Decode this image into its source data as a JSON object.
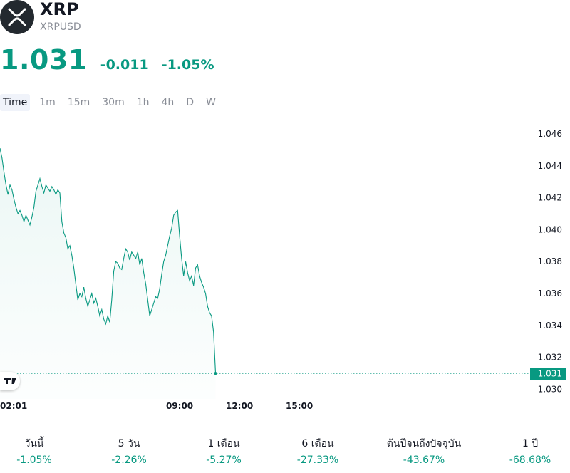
{
  "header": {
    "title": "XRP",
    "symbol": "XRPUSD",
    "price": "1.031",
    "change": "-0.011",
    "change_pct": "-1.05%"
  },
  "colors": {
    "up": "#089981",
    "logo_bg": "#23292f",
    "text": "#131722",
    "muted": "#8a8e97"
  },
  "icons": {
    "logo": "xrp-logo-icon",
    "watermark": "tradingview-logo-icon"
  },
  "tabs": [
    {
      "label": "Time",
      "active": true
    },
    {
      "label": "1m"
    },
    {
      "label": "15m"
    },
    {
      "label": "30m"
    },
    {
      "label": "1h"
    },
    {
      "label": "4h"
    },
    {
      "label": "D"
    },
    {
      "label": "W"
    }
  ],
  "chart_data": {
    "type": "area",
    "y_axis_position": "right",
    "ylim": [
      1.0294,
      1.0468
    ],
    "y_ticks": [
      "1.046",
      "1.044",
      "1.042",
      "1.040",
      "1.038",
      "1.036",
      "1.034",
      "1.032",
      "1.030"
    ],
    "x_ticks": [
      "02:01",
      "09:00",
      "12:00",
      "15:00"
    ],
    "x_tick_hours": [
      2.0,
      9.0,
      12.0,
      15.0
    ],
    "xlim_hours": [
      0.0,
      26.6
    ],
    "last_value": 1.031,
    "last_value_label": "1.031",
    "grid": false,
    "series": [
      {
        "x": [
          0.0,
          0.1,
          0.2,
          0.3,
          0.4,
          0.5,
          0.6,
          0.7,
          0.8,
          0.9,
          1.0,
          1.1,
          1.2,
          1.3,
          1.4,
          1.5,
          1.6,
          1.7,
          1.8,
          1.9,
          2.0,
          2.1,
          2.2,
          2.3,
          2.4,
          2.5,
          2.6,
          2.7,
          2.8,
          2.9,
          3.0,
          3.1,
          3.2,
          3.3,
          3.4,
          3.5,
          3.6,
          3.7,
          3.8,
          3.9,
          4.0,
          4.1,
          4.2,
          4.3,
          4.4,
          4.5,
          4.6,
          4.7,
          4.8,
          4.9,
          5.0,
          5.1,
          5.2,
          5.3,
          5.4,
          5.5,
          5.6,
          5.7,
          5.8,
          5.9,
          6.0,
          6.1,
          6.2,
          6.3,
          6.4,
          6.5,
          6.6,
          6.7,
          6.8,
          6.9,
          7.0,
          7.1,
          7.2,
          7.3,
          7.4,
          7.5,
          7.6,
          7.7,
          7.8,
          7.9,
          8.0,
          8.1,
          8.2,
          8.3,
          8.4,
          8.5,
          8.6,
          8.7,
          8.8,
          8.9,
          9.0,
          9.1,
          9.2,
          9.3,
          9.4,
          9.5,
          9.6,
          9.7,
          9.8,
          9.9,
          10.0,
          10.1,
          10.2,
          10.3,
          10.4,
          10.5,
          10.6,
          10.7,
          10.8
        ],
        "values": [
          1.0451,
          1.0445,
          1.0436,
          1.0428,
          1.0422,
          1.0428,
          1.0425,
          1.0419,
          1.0414,
          1.041,
          1.0412,
          1.0409,
          1.0405,
          1.0409,
          1.0406,
          1.0403,
          1.0408,
          1.0414,
          1.0424,
          1.0428,
          1.0432,
          1.0427,
          1.0423,
          1.0428,
          1.0426,
          1.0424,
          1.0427,
          1.0425,
          1.0422,
          1.0425,
          1.0423,
          1.0405,
          1.0398,
          1.0395,
          1.0388,
          1.039,
          1.0384,
          1.0376,
          1.0366,
          1.0356,
          1.036,
          1.0358,
          1.0364,
          1.0357,
          1.0352,
          1.0356,
          1.036,
          1.0354,
          1.0357,
          1.0352,
          1.0346,
          1.035,
          1.0344,
          1.0341,
          1.0346,
          1.0342,
          1.0356,
          1.0374,
          1.038,
          1.0379,
          1.0376,
          1.0375,
          1.0382,
          1.0388,
          1.0386,
          1.0381,
          1.0386,
          1.0384,
          1.0382,
          1.0386,
          1.0378,
          1.0382,
          1.0373,
          1.0366,
          1.0356,
          1.0346,
          1.035,
          1.0354,
          1.0358,
          1.0357,
          1.0363,
          1.0372,
          1.038,
          1.0384,
          1.039,
          1.0396,
          1.0401,
          1.0409,
          1.0411,
          1.0412,
          1.0396,
          1.0382,
          1.0371,
          1.038,
          1.0373,
          1.0368,
          1.0371,
          1.0365,
          1.0376,
          1.0378,
          1.0371,
          1.0367,
          1.0364,
          1.036,
          1.0352,
          1.0348,
          1.0346,
          1.0336,
          1.031
        ]
      }
    ]
  },
  "periods": [
    {
      "label": "วันนี้",
      "value": "-1.05%"
    },
    {
      "label": "5 วัน",
      "value": "-2.26%"
    },
    {
      "label": "1 เดือน",
      "value": "-5.27%"
    },
    {
      "label": "6 เดือน",
      "value": "-27.33%"
    },
    {
      "label": "ต้นปีจนถึงปัจจุบัน",
      "value": "-43.67%"
    },
    {
      "label": "1 ปี",
      "value": "-68.68%"
    }
  ]
}
